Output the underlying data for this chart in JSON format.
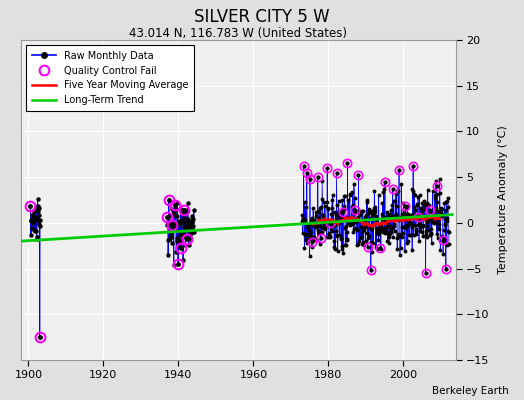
{
  "title": "SILVER CITY 5 W",
  "subtitle": "43.014 N, 116.783 W (United States)",
  "ylabel": "Temperature Anomaly (°C)",
  "attribution": "Berkeley Earth",
  "xlim": [
    1898,
    2014
  ],
  "ylim": [
    -15,
    20
  ],
  "yticks": [
    -15,
    -10,
    -5,
    0,
    5,
    10,
    15,
    20
  ],
  "xticks": [
    1900,
    1920,
    1940,
    1960,
    1980,
    2000
  ],
  "bg_color": "#f0f0f0",
  "fig_color": "#e0e0e0",
  "raw_color": "#0000ff",
  "qc_color": "#ff00ff",
  "ma_color": "#ff0000",
  "trend_color": "#00cc00",
  "trend_x": [
    1898,
    2013
  ],
  "trend_y": [
    -2.0,
    0.9
  ]
}
